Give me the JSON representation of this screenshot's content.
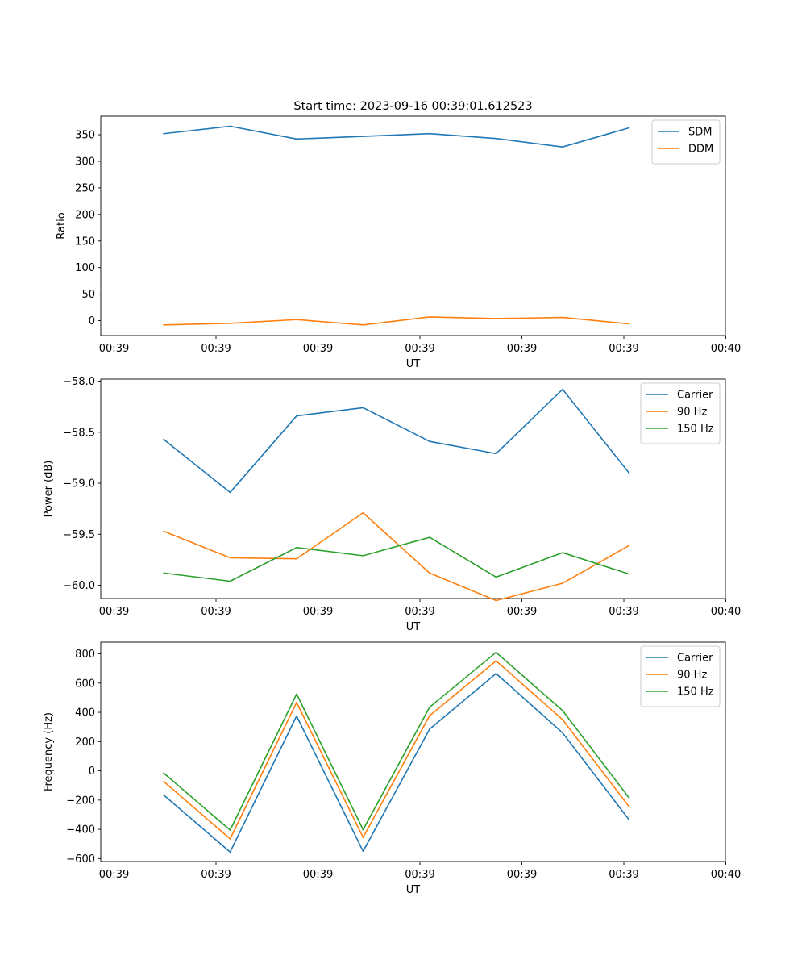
{
  "title": "Start time: 2023-09-16 00:39:01.612523",
  "colors": {
    "blue": "#1f77b4",
    "orange": "#ff7f0e",
    "green": "#2ca02c"
  },
  "chart_data": [
    {
      "type": "line",
      "xlabel": "UT",
      "ylabel": "Ratio",
      "xticks": [
        "00:39",
        "00:39",
        "00:39",
        "00:39",
        "00:39",
        "00:39",
        "00:40"
      ],
      "ylim": [
        -28,
        385
      ],
      "yticks": [
        0,
        50,
        100,
        150,
        200,
        250,
        300,
        350
      ],
      "ytick_labels": [
        "0",
        "50",
        "100",
        "150",
        "200",
        "250",
        "300",
        "350"
      ],
      "legend_position": "upper-right",
      "series": [
        {
          "name": "SDM",
          "color": "#1f77b4",
          "values": [
            352,
            366,
            342,
            347,
            352,
            343,
            327,
            363
          ]
        },
        {
          "name": "DDM",
          "color": "#ff7f0e",
          "values": [
            -8,
            -5,
            2,
            -8,
            7,
            4,
            6,
            -6
          ]
        }
      ]
    },
    {
      "type": "line",
      "xlabel": "UT",
      "ylabel": "Power (dB)",
      "xticks": [
        "00:39",
        "00:39",
        "00:39",
        "00:39",
        "00:39",
        "00:39",
        "00:40"
      ],
      "ylim": [
        -60.13,
        -57.98
      ],
      "yticks": [
        -58.0,
        -58.5,
        -59.0,
        -59.5,
        -60.0
      ],
      "ytick_labels": [
        "−58.0",
        "−58.5",
        "−59.0",
        "−59.5",
        "−60.0"
      ],
      "legend_position": "upper-right",
      "series": [
        {
          "name": "Carrier",
          "color": "#1f77b4",
          "values": [
            -58.57,
            -59.09,
            -58.34,
            -58.26,
            -58.59,
            -58.71,
            -58.08,
            -58.9
          ]
        },
        {
          "name": "90 Hz",
          "color": "#ff7f0e",
          "values": [
            -59.47,
            -59.73,
            -59.74,
            -59.29,
            -59.88,
            -60.15,
            -59.98,
            -59.61
          ]
        },
        {
          "name": "150 Hz",
          "color": "#2ca02c",
          "values": [
            -59.88,
            -59.96,
            -59.63,
            -59.71,
            -59.53,
            -59.92,
            -59.68,
            -59.89
          ]
        }
      ]
    },
    {
      "type": "line",
      "xlabel": "UT",
      "ylabel": "Frequency (Hz)",
      "xticks": [
        "00:39",
        "00:39",
        "00:39",
        "00:39",
        "00:39",
        "00:39",
        "00:40"
      ],
      "ylim": [
        -620,
        880
      ],
      "yticks": [
        -600,
        -400,
        -200,
        0,
        200,
        400,
        600,
        800
      ],
      "ytick_labels": [
        "−600",
        "−400",
        "−200",
        "0",
        "200",
        "400",
        "600",
        "800"
      ],
      "legend_position": "upper-right",
      "series": [
        {
          "name": "Carrier",
          "color": "#1f77b4",
          "values": [
            -165,
            -555,
            375,
            -550,
            285,
            665,
            260,
            -335
          ]
        },
        {
          "name": "90 Hz",
          "color": "#ff7f0e",
          "values": [
            -72,
            -465,
            467,
            -455,
            377,
            752,
            350,
            -245
          ]
        },
        {
          "name": "150 Hz",
          "color": "#2ca02c",
          "values": [
            -15,
            -405,
            525,
            -402,
            435,
            810,
            412,
            -185
          ]
        }
      ]
    }
  ]
}
